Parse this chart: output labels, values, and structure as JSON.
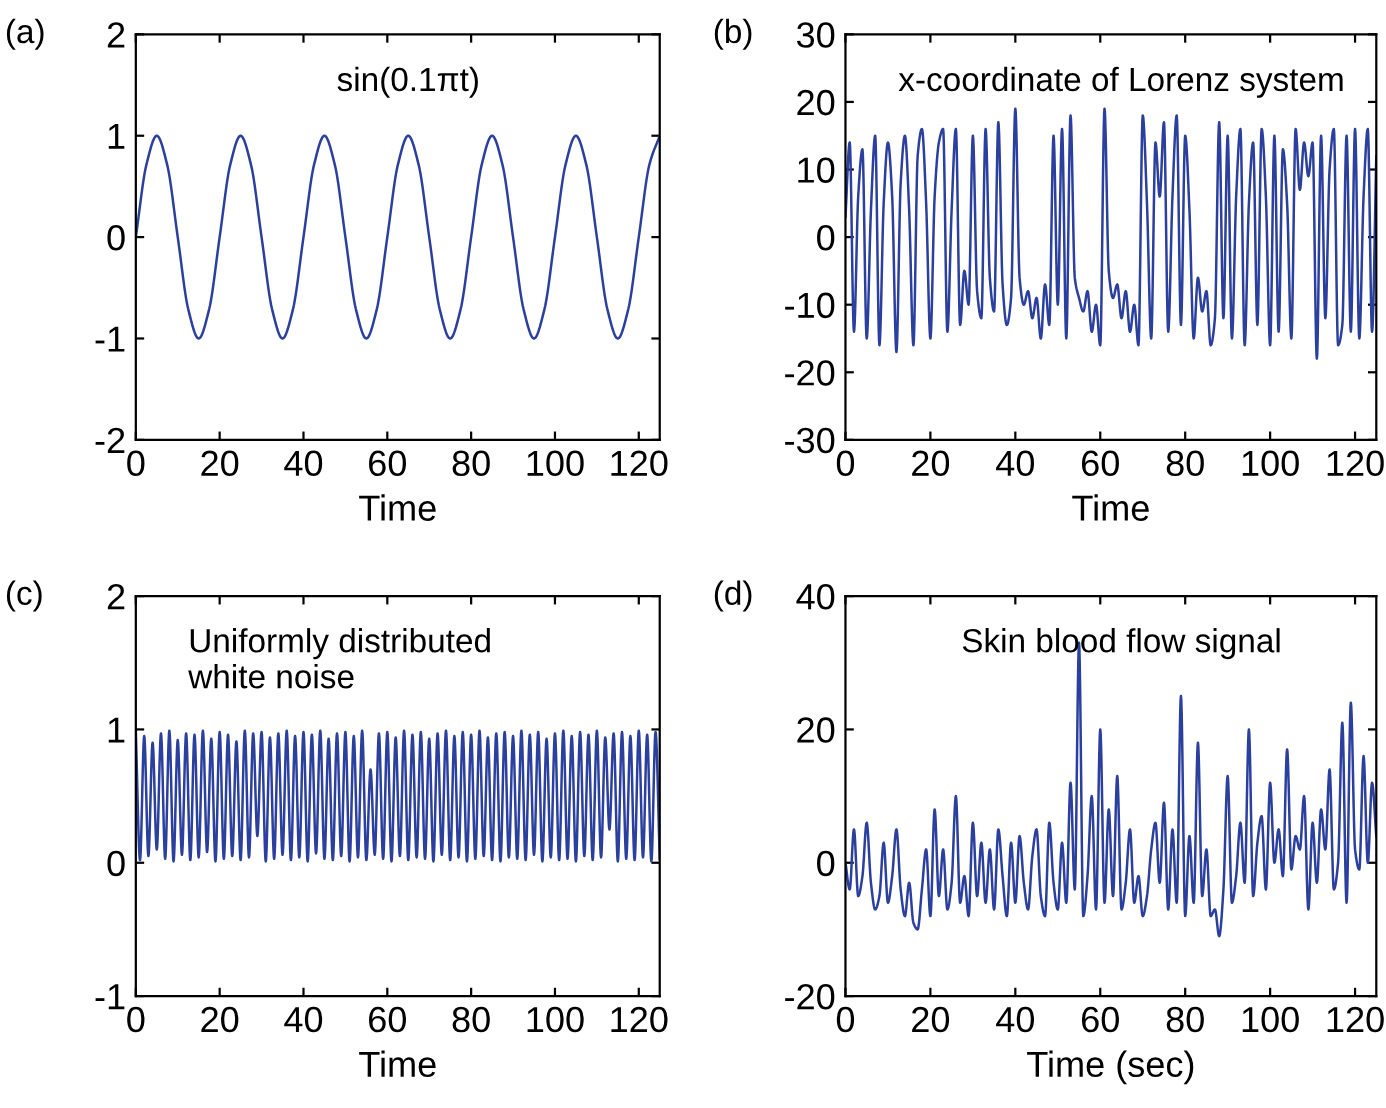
{
  "chart_data": [
    {
      "type": "line",
      "title": "(a)",
      "xlabel": "Time",
      "annotations": [
        "sin(0.1πt)"
      ],
      "xlim": [
        0,
        125
      ],
      "ylim": [
        -2,
        2
      ],
      "xticks": [
        0,
        20,
        40,
        60,
        80,
        100,
        120
      ],
      "yticks": [
        -2,
        -1,
        0,
        1,
        2
      ],
      "grid": false,
      "legend": false,
      "x": [
        0,
        2.5,
        5,
        7.5,
        10,
        12.5,
        15,
        17.5,
        20,
        22.5,
        25,
        27.5,
        30,
        32.5,
        35,
        37.5,
        40,
        42.5,
        45,
        47.5,
        50,
        52.5,
        55,
        57.5,
        60,
        62.5,
        65,
        67.5,
        70,
        72.5,
        75,
        77.5,
        80,
        82.5,
        85,
        87.5,
        90,
        92.5,
        95,
        97.5,
        100,
        102.5,
        105,
        107.5,
        110,
        112.5,
        115,
        117.5,
        120,
        122.5,
        125
      ],
      "series": [
        {
          "color": "#2b3f9e",
          "values": [
            0,
            0.71,
            1,
            0.71,
            0,
            -0.71,
            -1,
            -0.71,
            0,
            0.71,
            1,
            0.71,
            0,
            -0.71,
            -1,
            -0.71,
            0,
            0.71,
            1,
            0.71,
            0,
            -0.71,
            -1,
            -0.71,
            0,
            0.71,
            1,
            0.71,
            0,
            -0.71,
            -1,
            -0.71,
            0,
            0.71,
            1,
            0.71,
            0,
            -0.71,
            -1,
            -0.71,
            0,
            0.71,
            1,
            0.71,
            0,
            -0.71,
            -1,
            -0.71,
            0,
            0.71,
            1
          ]
        }
      ]
    },
    {
      "type": "line",
      "title": "(b)",
      "xlabel": "Time",
      "annotations": [
        "x-coordinate of Lorenz system"
      ],
      "xlim": [
        0,
        125
      ],
      "ylim": [
        -30,
        30
      ],
      "xticks": [
        0,
        20,
        40,
        60,
        80,
        100,
        120
      ],
      "yticks": [
        -30,
        -20,
        -10,
        0,
        10,
        20,
        30
      ],
      "grid": false,
      "legend": false,
      "x": [
        0,
        1,
        2,
        3,
        4,
        5,
        6,
        7,
        8,
        9,
        10,
        11,
        12,
        13,
        14,
        15,
        16,
        17,
        18,
        19,
        20,
        21,
        22,
        23,
        24,
        25,
        26,
        27,
        28,
        29,
        30,
        31,
        32,
        33,
        34,
        35,
        36,
        37,
        38,
        39,
        40,
        41,
        42,
        43,
        44,
        45,
        46,
        47,
        48,
        49,
        50,
        51,
        52,
        53,
        54,
        55,
        56,
        57,
        58,
        59,
        60,
        61,
        62,
        63,
        64,
        65,
        66,
        67,
        68,
        69,
        70,
        71,
        72,
        73,
        74,
        75,
        76,
        77,
        78,
        79,
        80,
        81,
        82,
        83,
        84,
        85,
        86,
        87,
        88,
        89,
        90,
        91,
        92,
        93,
        94,
        95,
        96,
        97,
        98,
        99,
        100,
        101,
        102,
        103,
        104,
        105,
        106,
        107,
        108,
        109,
        110,
        111,
        112,
        113,
        114,
        115,
        116,
        117,
        118,
        119,
        120,
        121,
        122,
        123,
        124,
        125
      ],
      "series": [
        {
          "color": "#2b3f9e",
          "values": [
            3,
            14,
            -14,
            6,
            13,
            -15,
            4,
            15,
            -16,
            5,
            14,
            6,
            -17,
            8,
            15,
            4,
            -16,
            12,
            16,
            5,
            -15,
            6,
            14,
            16,
            -14,
            4,
            16,
            -13,
            -5,
            -10,
            15,
            -8,
            -12,
            16,
            -6,
            -11,
            17,
            -7,
            -13,
            -9,
            19,
            -6,
            -10,
            -8,
            -12,
            -9,
            -15,
            -7,
            -13,
            15,
            -10,
            16,
            -15,
            18,
            -6,
            -9,
            -11,
            -8,
            -14,
            -10,
            -16,
            19,
            -5,
            -9,
            -7,
            -12,
            -8,
            -14,
            -10,
            -16,
            18,
            5,
            -15,
            14,
            6,
            17,
            -14,
            6,
            18,
            -13,
            15,
            4,
            -15,
            -6,
            -11,
            -8,
            -16,
            -12,
            17,
            -12,
            15,
            -15,
            6,
            16,
            -16,
            5,
            14,
            -13,
            16,
            6,
            -16,
            15,
            -14,
            13,
            5,
            -15,
            16,
            7,
            14,
            9,
            14,
            -18,
            15,
            -12,
            10,
            16,
            -16,
            -13,
            15,
            -14,
            16,
            -15,
            6,
            16,
            -14,
            12
          ]
        }
      ]
    },
    {
      "type": "line",
      "title": "(c)",
      "xlabel": "Time",
      "annotations": [
        "Uniformly distributed\nwhite noise"
      ],
      "xlim": [
        0,
        125
      ],
      "ylim": [
        -1,
        2
      ],
      "xticks": [
        0,
        20,
        40,
        60,
        80,
        100,
        120
      ],
      "yticks": [
        -1,
        0,
        1,
        2
      ],
      "grid": false,
      "legend": false,
      "x": [
        0,
        1,
        2,
        3,
        4,
        5,
        6,
        7,
        8,
        9,
        10,
        11,
        12,
        13,
        14,
        15,
        16,
        17,
        18,
        19,
        20,
        21,
        22,
        23,
        24,
        25,
        26,
        27,
        28,
        29,
        30,
        31,
        32,
        33,
        34,
        35,
        36,
        37,
        38,
        39,
        40,
        41,
        42,
        43,
        44,
        45,
        46,
        47,
        48,
        49,
        50,
        51,
        52,
        53,
        54,
        55,
        56,
        57,
        58,
        59,
        60,
        61,
        62,
        63,
        64,
        65,
        66,
        67,
        68,
        69,
        70,
        71,
        72,
        73,
        74,
        75,
        76,
        77,
        78,
        79,
        80,
        81,
        82,
        83,
        84,
        85,
        86,
        87,
        88,
        89,
        90,
        91,
        92,
        93,
        94,
        95,
        96,
        97,
        98,
        99,
        100,
        101,
        102,
        103,
        104,
        105,
        106,
        107,
        108,
        109,
        110,
        111,
        112,
        113,
        114,
        115,
        116,
        117,
        118,
        119,
        120,
        121,
        122,
        123,
        124,
        125
      ],
      "series": [
        {
          "color": "#2b3f9e",
          "values": [
            0.98,
            0.02,
            0.95,
            0.05,
            0.9,
            0.1,
            0.97,
            0.03,
            0.99,
            0.01,
            0.92,
            0.06,
            0.97,
            0.02,
            0.96,
            0.04,
            0.99,
            0.08,
            0.93,
            0.01,
            0.98,
            0.03,
            0.96,
            0.05,
            0.91,
            0.02,
            0.99,
            0.04,
            0.97,
            0.2,
            0.98,
            0.01,
            0.94,
            0.03,
            0.97,
            0.06,
            0.99,
            0.02,
            0.95,
            0.04,
            0.98,
            0.01,
            0.96,
            0.07,
            0.99,
            0.03,
            0.93,
            0.02,
            0.97,
            0.05,
            0.98,
            0.01,
            0.95,
            0.04,
            0.99,
            0.02,
            0.7,
            0.06,
            0.97,
            0.03,
            0.98,
            0.01,
            0.94,
            0.05,
            0.99,
            0.02,
            0.96,
            0.04,
            0.98,
            0.03,
            0.93,
            0.01,
            0.97,
            0.06,
            0.99,
            0.02,
            0.95,
            0.04,
            0.98,
            0.01,
            0.96,
            0.03,
            0.99,
            0.05,
            0.94,
            0.02,
            0.97,
            0.01,
            0.98,
            0.04,
            0.95,
            0.03,
            0.99,
            0.02,
            0.96,
            0.06,
            0.98,
            0.01,
            0.93,
            0.04,
            0.97,
            0.02,
            0.99,
            0.03,
            0.95,
            0.01,
            0.98,
            0.05,
            0.96,
            0.02,
            0.99,
            0.04,
            0.94,
            0.25,
            0.97,
            0.01,
            0.98,
            0.03,
            0.95,
            0.02,
            0.99,
            0.04,
            0.96,
            0.01,
            0.98,
            0.03
          ]
        }
      ]
    },
    {
      "type": "line",
      "title": "(d)",
      "xlabel": "Time (sec)",
      "annotations": [
        "Skin blood flow signal"
      ],
      "xlim": [
        0,
        125
      ],
      "ylim": [
        -20,
        40
      ],
      "xticks": [
        0,
        20,
        40,
        60,
        80,
        100,
        120
      ],
      "yticks": [
        -20,
        0,
        20,
        40
      ],
      "grid": false,
      "legend": false,
      "x": [
        0,
        1,
        2,
        3,
        4,
        5,
        6,
        7,
        8,
        9,
        10,
        11,
        12,
        13,
        14,
        15,
        16,
        17,
        18,
        19,
        20,
        21,
        22,
        23,
        24,
        25,
        26,
        27,
        28,
        29,
        30,
        31,
        32,
        33,
        34,
        35,
        36,
        37,
        38,
        39,
        40,
        41,
        42,
        43,
        44,
        45,
        46,
        47,
        48,
        49,
        50,
        51,
        52,
        53,
        54,
        55,
        56,
        57,
        58,
        59,
        60,
        61,
        62,
        63,
        64,
        65,
        66,
        67,
        68,
        69,
        70,
        71,
        72,
        73,
        74,
        75,
        76,
        77,
        78,
        79,
        80,
        81,
        82,
        83,
        84,
        85,
        86,
        87,
        88,
        89,
        90,
        91,
        92,
        93,
        94,
        95,
        96,
        97,
        98,
        99,
        100,
        101,
        102,
        103,
        104,
        105,
        106,
        107,
        108,
        109,
        110,
        111,
        112,
        113,
        114,
        115,
        116,
        117,
        118,
        119,
        120,
        121,
        122,
        123,
        124,
        125
      ],
      "series": [
        {
          "color": "#2b3f9e",
          "values": [
            0,
            -4,
            5,
            -5,
            -2,
            6,
            -3,
            -7,
            -5,
            3,
            -6,
            -2,
            5,
            -4,
            -8,
            -3,
            -9,
            -10,
            -4,
            2,
            -8,
            8,
            -5,
            2,
            -7,
            -3,
            10,
            -6,
            -2,
            -8,
            6,
            -5,
            3,
            -6,
            2,
            -7,
            5,
            -2,
            -8,
            3,
            -6,
            4,
            -3,
            -7,
            1,
            5,
            -5,
            -8,
            6,
            -3,
            -7,
            3,
            -6,
            12,
            -4,
            33,
            -8,
            -2,
            10,
            -7,
            20,
            -6,
            8,
            -5,
            13,
            -7,
            -3,
            5,
            -6,
            -2,
            -8,
            -5,
            2,
            6,
            -3,
            9,
            -7,
            5,
            -6,
            25,
            -8,
            4,
            -6,
            18,
            -5,
            2,
            -8,
            -7,
            -11,
            -4,
            13,
            -6,
            -2,
            6,
            -3,
            20,
            -5,
            3,
            7,
            -4,
            12,
            0,
            5,
            -2,
            17,
            -1,
            4,
            2,
            10,
            -7,
            6,
            -3,
            8,
            2,
            14,
            -4,
            0,
            21,
            -6,
            24,
            2,
            -1,
            16,
            0,
            12,
            4
          ]
        }
      ]
    }
  ]
}
